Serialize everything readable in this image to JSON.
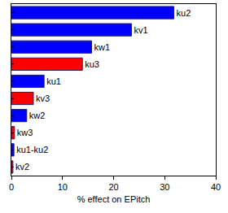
{
  "chart_data": {
    "type": "bar",
    "orientation": "horizontal",
    "x_label": "% effect on EPitch",
    "categories": [
      "ku2",
      "kv1",
      "kw1",
      "ku3",
      "ku1",
      "kv3",
      "kw2",
      "kw3",
      "ku1-ku2",
      "kv2"
    ],
    "values": [
      31.8,
      23.5,
      15.7,
      13.9,
      6.4,
      4.3,
      3.0,
      0.6,
      0.5,
      0.3
    ],
    "colors": [
      "#0000ff",
      "#0000ff",
      "#0000ff",
      "#ff0000",
      "#0000ff",
      "#ff0000",
      "#0000ff",
      "#ff0000",
      "#0000ff",
      "#ff0000"
    ],
    "xlim": [
      0,
      40
    ],
    "xticks": [
      0,
      10,
      20,
      30,
      40
    ],
    "grid": false,
    "tick_labels": "x"
  }
}
